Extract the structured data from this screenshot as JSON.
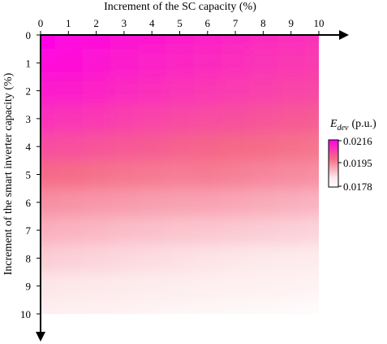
{
  "chart_data": {
    "type": "heatmap",
    "xlabel": "Increment of the SC capacity (%)",
    "ylabel": "Increment of the smart inverter capacity (%)",
    "x_ticks": [
      "0",
      "1",
      "2",
      "3",
      "4",
      "5",
      "6",
      "7",
      "8",
      "9",
      "10"
    ],
    "y_ticks": [
      "0",
      "1",
      "2",
      "3",
      "4",
      "5",
      "6",
      "7",
      "8",
      "9",
      "10"
    ],
    "xlim": [
      0,
      10
    ],
    "ylim": [
      0,
      10
    ],
    "x_axis_position": "top",
    "y_axis_direction": "downward",
    "colorbar": {
      "title": "E",
      "title_subscript": "dev",
      "unit": "(p.u.)",
      "ticks": [
        "0.0216",
        "0.0195",
        "0.0178"
      ],
      "range": [
        0.0178,
        0.0216
      ],
      "colors": [
        "#ff00e6",
        "#f56a86",
        "#fde8ea",
        "#ffffff"
      ]
    },
    "values": [
      [
        0.0216,
        0.0215,
        0.0214,
        0.0213,
        0.02125,
        0.02118,
        0.02112,
        0.02106,
        0.021,
        0.02095,
        0.0209
      ],
      [
        0.02145,
        0.02138,
        0.0213,
        0.0212,
        0.02112,
        0.02105,
        0.02098,
        0.02092,
        0.02086,
        0.0208,
        0.02075
      ],
      [
        0.0212,
        0.02115,
        0.02108,
        0.021,
        0.02092,
        0.02085,
        0.0208,
        0.02074,
        0.02068,
        0.02062,
        0.02058
      ],
      [
        0.0209,
        0.02085,
        0.02078,
        0.0207,
        0.02063,
        0.02056,
        0.0205,
        0.02045,
        0.0204,
        0.02034,
        0.0203
      ],
      [
        0.0205,
        0.02046,
        0.0204,
        0.02034,
        0.02028,
        0.0202,
        0.02015,
        0.0201,
        0.02005,
        0.02,
        0.01995
      ],
      [
        0.0201,
        0.02006,
        0.02,
        0.01994,
        0.0199,
        0.01985,
        0.01988,
        0.01982,
        0.01975,
        0.0197,
        0.01965
      ],
      [
        0.01965,
        0.0196,
        0.01955,
        0.0195,
        0.01945,
        0.01942,
        0.0194,
        0.01936,
        0.0193,
        0.01925,
        0.0192
      ],
      [
        0.01925,
        0.0192,
        0.01915,
        0.01908,
        0.01904,
        0.019,
        0.01897,
        0.01893,
        0.0189,
        0.01885,
        0.0188
      ],
      [
        0.0189,
        0.01885,
        0.0188,
        0.01875,
        0.0187,
        0.01866,
        0.01862,
        0.01858,
        0.01854,
        0.0185,
        0.01846
      ],
      [
        0.0186,
        0.01856,
        0.01852,
        0.01847,
        0.01842,
        0.01838,
        0.01834,
        0.0183,
        0.01826,
        0.01822,
        0.01818
      ],
      [
        0.01835,
        0.0183,
        0.01826,
        0.01822,
        0.01817,
        0.01813,
        0.01808,
        0.01804,
        0.018,
        0.01795,
        0.0179
      ]
    ]
  }
}
